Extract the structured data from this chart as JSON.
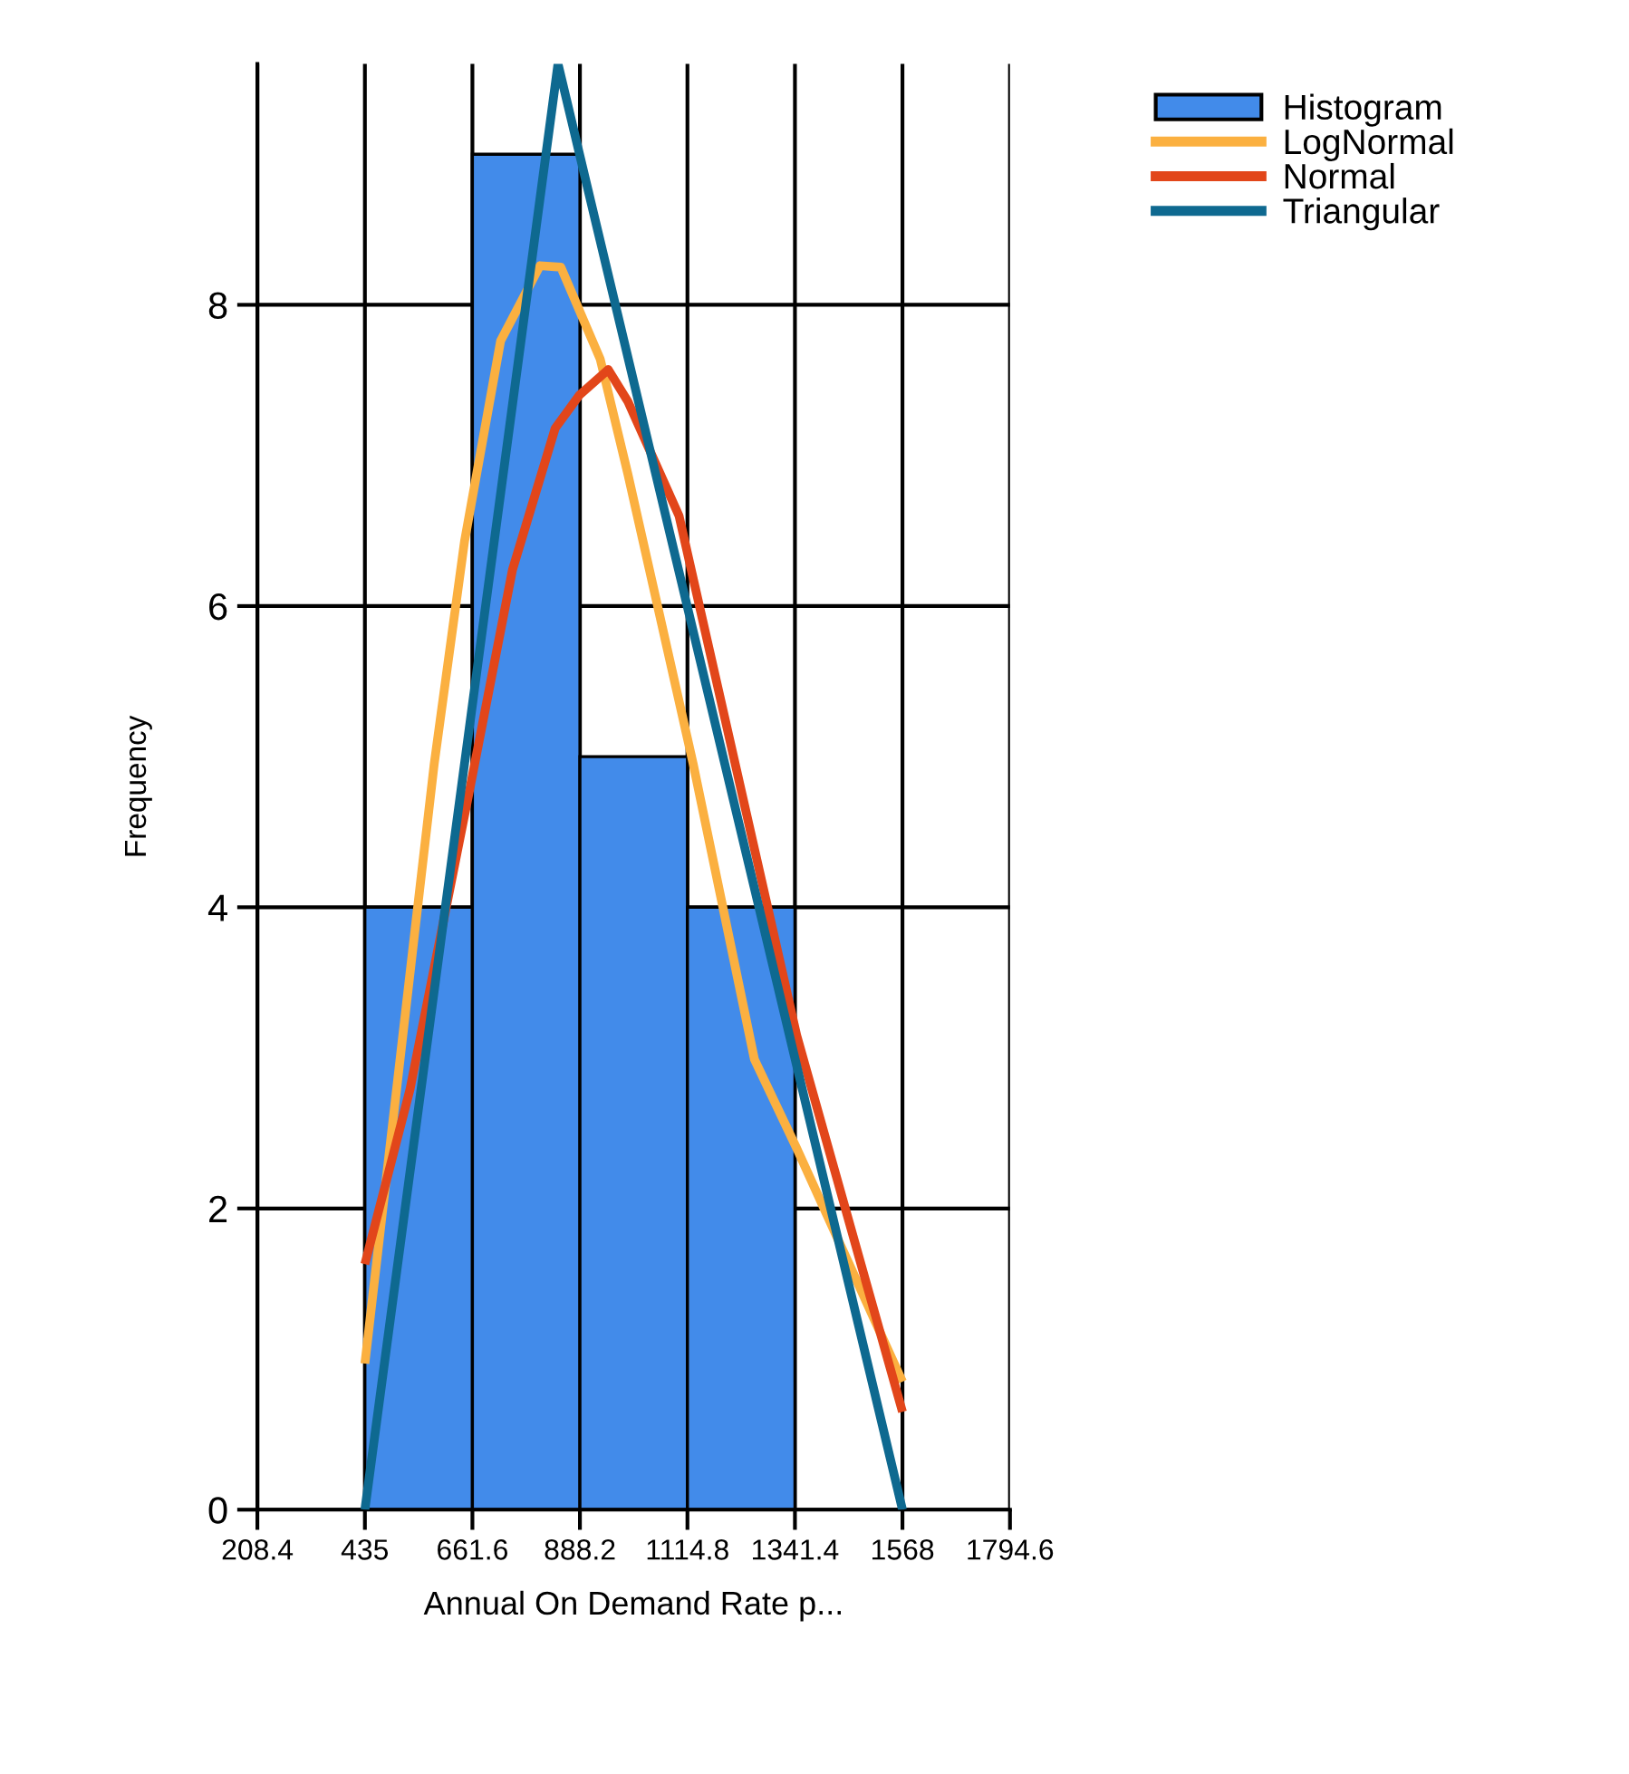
{
  "chart_data": {
    "type": "histogram",
    "xlabel": "Annual On Demand Rate p...",
    "ylabel": "Frequency",
    "xlim": [
      208.4,
      1794.6
    ],
    "xticks": [
      208.4,
      435,
      661.6,
      888.2,
      1114.8,
      1341.4,
      1568,
      1794.6
    ],
    "ylim": [
      0,
      9.6
    ],
    "yticks": [
      0,
      2,
      4,
      6,
      8
    ],
    "grid": true,
    "legend": "top right",
    "series": [
      {
        "name": "Histogram",
        "type": "histogram",
        "color": "#428bea",
        "bins": [
          435,
          661.6,
          888.2,
          1114.8,
          1341.4
        ],
        "values": [
          4,
          9,
          5,
          4
        ]
      },
      {
        "name": "LogNormal",
        "type": "line",
        "color": "#fbb040",
        "x": [
          435,
          581,
          645,
          721,
          804,
          848,
          931,
          989,
          1127,
          1256,
          1345,
          1568
        ],
        "values": [
          0.97,
          4.95,
          6.43,
          7.76,
          8.26,
          8.25,
          7.64,
          6.88,
          4.95,
          2.99,
          2.4,
          0.85
        ]
      },
      {
        "name": "Normal",
        "type": "line",
        "color": "#e2461a",
        "x": [
          435,
          530,
          657,
          746,
          836,
          887,
          948,
          989,
          1097,
          1345,
          1568
        ],
        "values": [
          1.63,
          2.79,
          4.8,
          6.24,
          7.18,
          7.4,
          7.57,
          7.36,
          6.6,
          3.15,
          0.65
        ]
      },
      {
        "name": "Triangular",
        "type": "line",
        "color": "#0e6990",
        "x": [
          435,
          842,
          1568
        ],
        "values": [
          0,
          9.6,
          0
        ]
      }
    ]
  }
}
